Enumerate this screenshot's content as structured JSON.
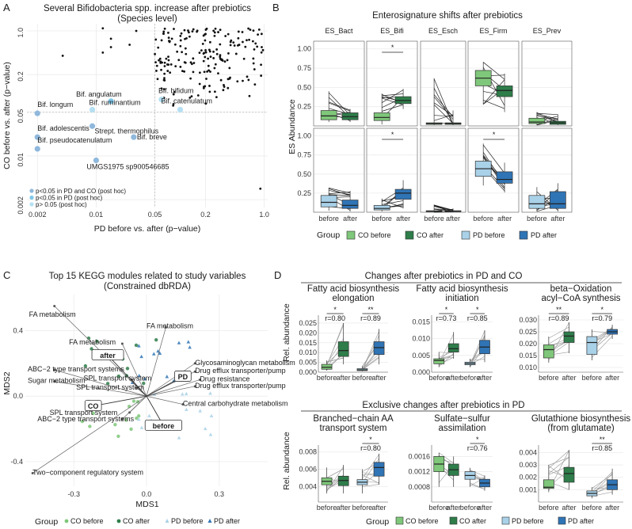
{
  "panels": {
    "A": "A",
    "B": "B",
    "C": "C",
    "D": "D"
  },
  "colors": {
    "co_before": "#7fc77a",
    "co_after": "#2e7d4a",
    "pd_before": "#a9d1e8",
    "pd_after": "#2f74b5",
    "bif_dark": "#8fb8dc",
    "bif_mid": "#7ec8ea",
    "bif_light": "#b5e0f3"
  },
  "chart_data": [
    {
      "id": "A",
      "type": "scatter",
      "title": "Several Bifidobacteria spp. increase after prebiotics",
      "subtitle": "(Species level)",
      "xlabel": "PD before vs. after (p−value)",
      "ylabel": "CO before vs. after (p−value)",
      "xticks": [
        "0.002",
        "0.01",
        "0.05",
        "0.2",
        "1.0"
      ],
      "yticks": [
        "1.0",
        "0.2",
        "0.05",
        "0.01",
        "0.002"
      ],
      "xlim": [
        0.0015,
        1.1
      ],
      "ylim": [
        0.0015,
        1.3
      ],
      "labeled_points": [
        {
          "label": "Bif. angulatum",
          "x": 0.015,
          "y": 0.075,
          "grp": "mid"
        },
        {
          "label": "Bif. bifidum",
          "x": 0.06,
          "y": 0.08,
          "grp": "light"
        },
        {
          "label": "Bif. ruminantium",
          "x": 0.009,
          "y": 0.055,
          "grp": "light"
        },
        {
          "label": "Bif. catenulatum",
          "x": 0.1,
          "y": 0.055,
          "grp": "light"
        },
        {
          "label": "Bif. longum",
          "x": 0.002,
          "y": 0.048,
          "grp": "dark"
        },
        {
          "label": "Strept. thermophilus",
          "x": 0.009,
          "y": 0.03,
          "grp": "dark"
        },
        {
          "label": "Bif. adolescentis",
          "x": 0.002,
          "y": 0.02,
          "grp": "dark"
        },
        {
          "label": "Bif. breve",
          "x": 0.028,
          "y": 0.02,
          "grp": "dark"
        },
        {
          "label": "Bif. pseudocatenulatum",
          "x": 0.002,
          "y": 0.013,
          "grp": "dark"
        },
        {
          "label": "UMGS1975 sp900546685",
          "x": 0.01,
          "y": 0.0085,
          "grp": "dark"
        }
      ],
      "legend": [
        "p<0.05 in PD and CO (post hoc)",
        "p<0.05 in PD (post hoc)",
        "p> 0.05 (post hoc)"
      ]
    },
    {
      "id": "B",
      "type": "box",
      "title": "Enterosignature shifts after prebiotics",
      "ylabel": "ES Abundance",
      "facets": [
        "ES_Bact",
        "ES_Bifi",
        "ES_Esch",
        "ES_Firm",
        "ES_Prev"
      ],
      "xcats": [
        "before",
        "after"
      ],
      "yticks": [
        "0.25",
        "0.50",
        "0.75",
        "1.00"
      ],
      "ylim": [
        0,
        1.1
      ],
      "rows": [
        {
          "group": "CO",
          "boxes": [
            [
              [
                0.05,
                0.08,
                0.13,
                0.2,
                0.45
              ],
              [
                0.05,
                0.08,
                0.12,
                0.17,
                0.22
              ]
            ],
            [
              [
                0.02,
                0.07,
                0.11,
                0.17,
                0.42
              ],
              [
                0.22,
                0.29,
                0.33,
                0.38,
                0.48
              ]
            ],
            [
              [
                0.01,
                0.02,
                0.03,
                0.04,
                0.62
              ],
              [
                0.01,
                0.02,
                0.03,
                0.04,
                0.2
              ]
            ],
            [
              [
                0.28,
                0.52,
                0.62,
                0.72,
                0.83
              ],
              [
                0.18,
                0.38,
                0.46,
                0.52,
                0.68
              ]
            ],
            [
              [
                0.01,
                0.03,
                0.05,
                0.1,
                0.18
              ],
              [
                0.01,
                0.02,
                0.04,
                0.06,
                0.15
              ]
            ]
          ],
          "sig": [
            null,
            "*",
            null,
            null,
            null
          ]
        },
        {
          "group": "PD",
          "boxes": [
            [
              [
                0.02,
                0.07,
                0.13,
                0.22,
                0.32
              ],
              [
                0.01,
                0.05,
                0.09,
                0.16,
                0.28
              ]
            ],
            [
              [
                0.01,
                0.03,
                0.05,
                0.09,
                0.18
              ],
              [
                0.05,
                0.17,
                0.25,
                0.3,
                0.42
              ]
            ],
            [
              [
                0.0,
                0.01,
                0.01,
                0.02,
                0.1
              ],
              [
                0.0,
                0.01,
                0.01,
                0.02,
                0.05
              ]
            ],
            [
              [
                0.35,
                0.47,
                0.57,
                0.67,
                0.9
              ],
              [
                0.26,
                0.38,
                0.43,
                0.53,
                0.65
              ]
            ],
            [
              [
                0.01,
                0.05,
                0.11,
                0.22,
                0.33
              ],
              [
                0.01,
                0.05,
                0.11,
                0.27,
                0.38
              ]
            ]
          ],
          "sig": [
            null,
            "*",
            null,
            "*",
            null
          ]
        }
      ],
      "legend_title": "Group",
      "legend": [
        "CO before",
        "CO after",
        "PD before",
        "PD after"
      ]
    },
    {
      "id": "C",
      "type": "scatter",
      "title": "Top 15 KEGG modules related to study variables",
      "subtitle": "(Constrained dbRDA)",
      "xlabel": "MDS1",
      "ylabel": "MDS2",
      "xticks": [
        "-0.3",
        "0.0",
        "0.3"
      ],
      "yticks": [
        "0.4",
        "0.0",
        "-0.4"
      ],
      "xlim": [
        -0.5,
        0.5
      ],
      "ylim": [
        -0.55,
        0.62
      ],
      "group_boxes": [
        {
          "label": "after",
          "x": -0.16,
          "y": 0.25
        },
        {
          "label": "PD",
          "x": 0.15,
          "y": 0.12
        },
        {
          "label": "CO",
          "x": -0.22,
          "y": -0.06
        },
        {
          "label": "before",
          "x": 0.07,
          "y": -0.18
        }
      ],
      "vectors": [
        {
          "label": "FA metabolism",
          "x": -0.38,
          "y": 0.55,
          "lx": -0.485,
          "ly": 0.5
        },
        {
          "label": "FA metabolism",
          "x": -0.1,
          "y": 0.32,
          "lx": -0.32,
          "ly": 0.33
        },
        {
          "label": "FA metabolism",
          "x": 0.08,
          "y": 0.42,
          "lx": 0.0,
          "ly": 0.43
        },
        {
          "label": "ABC−2 type transport systems",
          "x": -0.38,
          "y": 0.16,
          "lx": -0.49,
          "ly": 0.165
        },
        {
          "label": "Sugar metabolism",
          "x": -0.38,
          "y": 0.09,
          "lx": -0.49,
          "ly": 0.095
        },
        {
          "label": "SPL transport system",
          "x": -0.06,
          "y": 0.1,
          "lx": -0.26,
          "ly": 0.11
        },
        {
          "label": "SPL transport system",
          "x": -0.04,
          "y": 0.05,
          "lx": -0.29,
          "ly": 0.055
        },
        {
          "label": "SPL transport system",
          "x": -0.07,
          "y": -0.1,
          "lx": -0.4,
          "ly": -0.1
        },
        {
          "label": "ABC−2 type transport systems",
          "x": -0.1,
          "y": -0.14,
          "lx": -0.45,
          "ly": -0.14
        },
        {
          "label": "Glycosaminoglycan metabolism",
          "x": 0.2,
          "y": 0.2,
          "lx": 0.2,
          "ly": 0.205
        },
        {
          "label": "Drug efflux transporter/pump",
          "x": 0.2,
          "y": 0.15,
          "lx": 0.2,
          "ly": 0.155
        },
        {
          "label": "Drug resistance",
          "x": 0.22,
          "y": 0.1,
          "lx": 0.22,
          "ly": 0.105
        },
        {
          "label": "Drug efflux transporter/pump",
          "x": 0.2,
          "y": 0.06,
          "lx": 0.2,
          "ly": 0.065
        },
        {
          "label": "Central carbohydrate metabolism",
          "x": 0.15,
          "y": -0.05,
          "lx": 0.15,
          "ly": -0.045
        },
        {
          "label": "Two−component regulatory system",
          "x": -0.47,
          "y": -0.47,
          "lx": -0.47,
          "ly": -0.465
        }
      ],
      "legend_title": "Group",
      "legend": [
        "CO before",
        "CO after",
        "PD before",
        "PD after"
      ]
    },
    {
      "id": "D",
      "type": "box",
      "row_titles": [
        "Changes after prebiotics in PD and CO",
        "Exclusive changes after prebiotics in PD"
      ],
      "ylabel": "Rel. abundance",
      "xcats": [
        "before",
        "after",
        "before",
        "after"
      ],
      "facets": [
        {
          "title": [
            "Fatty acid biosynthesis",
            "elongation"
          ],
          "yticks": [
            "0.000",
            "0.005",
            "0.010",
            "0.015",
            "0.020",
            "0.025"
          ],
          "ylim": [
            0,
            0.029
          ],
          "boxes": [
            [
              0.0008,
              0.0015,
              0.0025,
              0.004,
              0.006
            ],
            [
              0.004,
              0.008,
              0.011,
              0.0155,
              0.025
            ],
            [
              0.0005,
              0.0008,
              0.0012,
              0.0018,
              0.003
            ],
            [
              0.004,
              0.009,
              0.0125,
              0.0155,
              0.022
            ]
          ],
          "sig": [
            "*",
            "**"
          ],
          "r": [
            "r=0.80",
            "r=0.89"
          ]
        },
        {
          "title": [
            "Fatty acid biosynthesis",
            "initiation"
          ],
          "yticks": [
            "0.000",
            "0.005",
            "0.010",
            "0.015"
          ],
          "ylim": [
            0,
            0.017
          ],
          "boxes": [
            [
              0.0015,
              0.0025,
              0.0035,
              0.004,
              0.006
            ],
            [
              0.004,
              0.006,
              0.007,
              0.0085,
              0.012
            ],
            [
              0.0015,
              0.0022,
              0.0026,
              0.003,
              0.004
            ],
            [
              0.003,
              0.0055,
              0.0075,
              0.0095,
              0.0125
            ]
          ],
          "sig": [
            "*",
            "*"
          ],
          "r": [
            "r=0.73",
            "r=0.85"
          ]
        },
        {
          "title": [
            "beta−Oxidation",
            "acyl−CoA synthesis"
          ],
          "yticks": [
            "0.010",
            "0.015",
            "0.020",
            "0.025",
            "0.030"
          ],
          "ylim": [
            0.008,
            0.032
          ],
          "boxes": [
            [
              0.012,
              0.014,
              0.0175,
              0.0195,
              0.023
            ],
            [
              0.016,
              0.0205,
              0.0232,
              0.025,
              0.029
            ],
            [
              0.013,
              0.0155,
              0.0205,
              0.023,
              0.026
            ],
            [
              0.022,
              0.024,
              0.025,
              0.026,
              0.028
            ]
          ],
          "sig": [
            "**",
            "*"
          ],
          "r": [
            "r=0.89",
            "r=0.79"
          ]
        },
        {
          "title": [
            "Branched−chain AA",
            "transport system"
          ],
          "yticks": [
            "0.004",
            "0.006",
            "0.008"
          ],
          "ylim": [
            0.0022,
            0.0088
          ],
          "boxes": [
            [
              0.0032,
              0.0042,
              0.0046,
              0.005,
              0.0062
            ],
            [
              0.0032,
              0.0041,
              0.0047,
              0.0052,
              0.0065
            ],
            [
              0.0032,
              0.0042,
              0.0045,
              0.0048,
              0.006
            ],
            [
              0.0042,
              0.0052,
              0.0062,
              0.0068,
              0.0078
            ]
          ],
          "sig": [
            null,
            "*"
          ],
          "r": [
            null,
            "r=0.80"
          ]
        },
        {
          "title": [
            "Sulfate−sulfur",
            "assimilation"
          ],
          "yticks": [
            "0.0008",
            "0.0012",
            "0.0016"
          ],
          "ylim": [
            0.0004,
            0.0019
          ],
          "boxes": [
            [
              0.0008,
              0.0012,
              0.0014,
              0.0016,
              0.0017
            ],
            [
              0.0008,
              0.0011,
              0.00125,
              0.0014,
              0.0016
            ],
            [
              0.0008,
              0.001,
              0.0011,
              0.0012,
              0.0013
            ],
            [
              0.0007,
              0.0008,
              0.0009,
              0.001,
              0.0011
            ]
          ],
          "sig": [
            null,
            "*"
          ],
          "r": [
            null,
            "r=0.76"
          ]
        },
        {
          "title": [
            "Glutathione biosynthesis",
            "(from glutamate)"
          ],
          "yticks": [
            "0.001",
            "0.002",
            "0.003",
            "0.004"
          ],
          "ylim": [
            0,
            0.0046
          ],
          "boxes": [
            [
              0.0008,
              0.0011,
              0.0012,
              0.0018,
              0.003
            ],
            [
              0.001,
              0.0016,
              0.0023,
              0.0028,
              0.0042
            ],
            [
              0.0003,
              0.0005,
              0.0007,
              0.0009,
              0.0012
            ],
            [
              0.0006,
              0.001,
              0.0014,
              0.0018,
              0.0027
            ]
          ],
          "sig": [
            null,
            "**"
          ],
          "r": [
            null,
            "r=0.85"
          ]
        }
      ],
      "legend_title": "Group",
      "legend": [
        "CO before",
        "CO after",
        "PD before",
        "PD after"
      ]
    }
  ]
}
